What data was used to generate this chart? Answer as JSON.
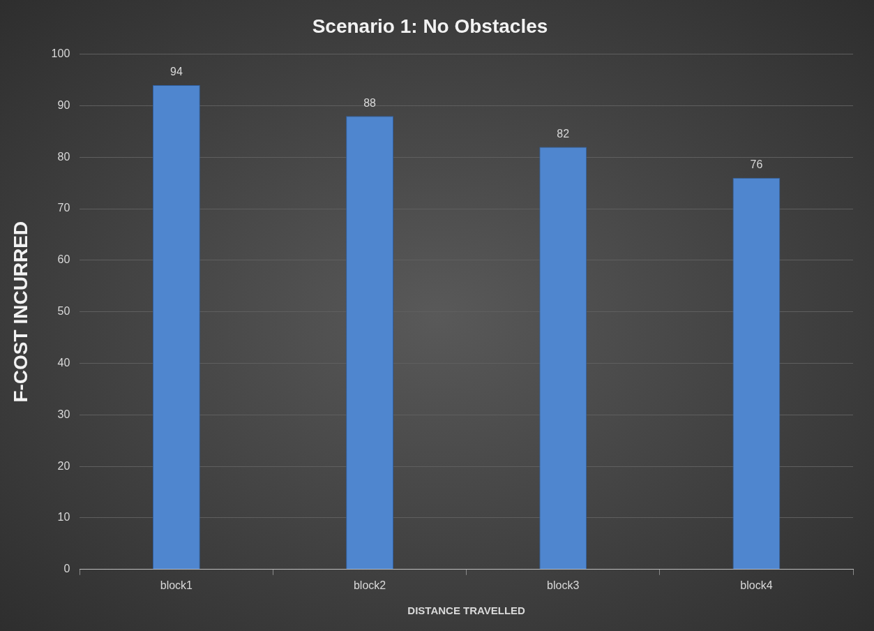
{
  "chart_data": {
    "type": "bar",
    "title": "Scenario 1: No Obstacles",
    "xlabel": "DISTANCE TRAVELLED",
    "ylabel": "F-COST INCURRED",
    "categories": [
      "block1",
      "block2",
      "block3",
      "block4"
    ],
    "values": [
      94,
      88,
      82,
      76
    ],
    "color": "#4f86cf",
    "ylim": [
      0,
      100
    ],
    "yticks": [
      0,
      10,
      20,
      30,
      40,
      50,
      60,
      70,
      80,
      90,
      100
    ],
    "grid": "y",
    "data_labels": true,
    "legend": false
  }
}
